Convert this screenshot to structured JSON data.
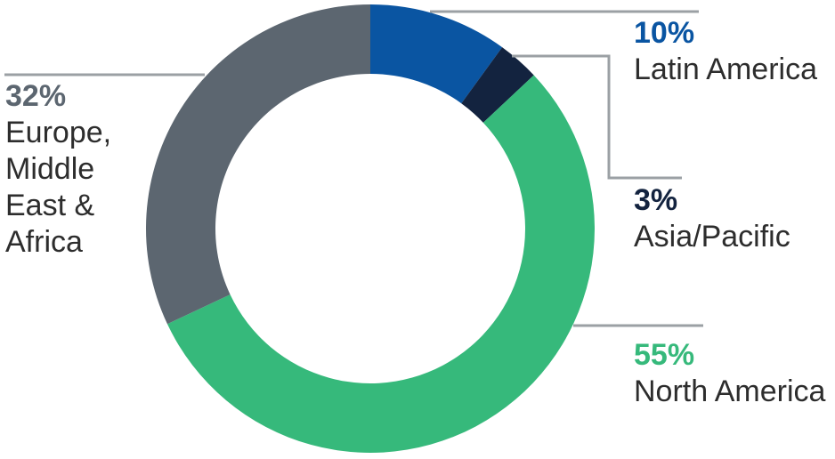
{
  "page": {
    "background": "#ffffff"
  },
  "chart_data": {
    "type": "pie",
    "subtype": "donut",
    "title": "",
    "unit": "%",
    "total": 100,
    "start_angle_deg": 0,
    "direction": "clockwise",
    "inner_radius_ratio": 0.69,
    "legend_position": "callout-labels",
    "segments": [
      {
        "name": "Latin America",
        "value": 10,
        "pct_label": "10%",
        "color": "#0a55a2",
        "label_side": "right"
      },
      {
        "name": "Asia/Pacific",
        "value": 3,
        "pct_label": "3%",
        "color": "#13233f",
        "label_side": "right"
      },
      {
        "name": "North America",
        "value": 55,
        "pct_label": "55%",
        "color": "#36b97b",
        "label_side": "right"
      },
      {
        "name": "Europe, Middle East & Africa",
        "value": 32,
        "pct_label": "32%",
        "color": "#5c6670",
        "label_side": "left",
        "name_lines": [
          "Europe,",
          "Middle",
          "East &",
          "Africa"
        ]
      }
    ],
    "colors": {
      "label_text": "#2d2d2d",
      "leader_line": "#9ba0a4",
      "background": "#ffffff"
    }
  }
}
